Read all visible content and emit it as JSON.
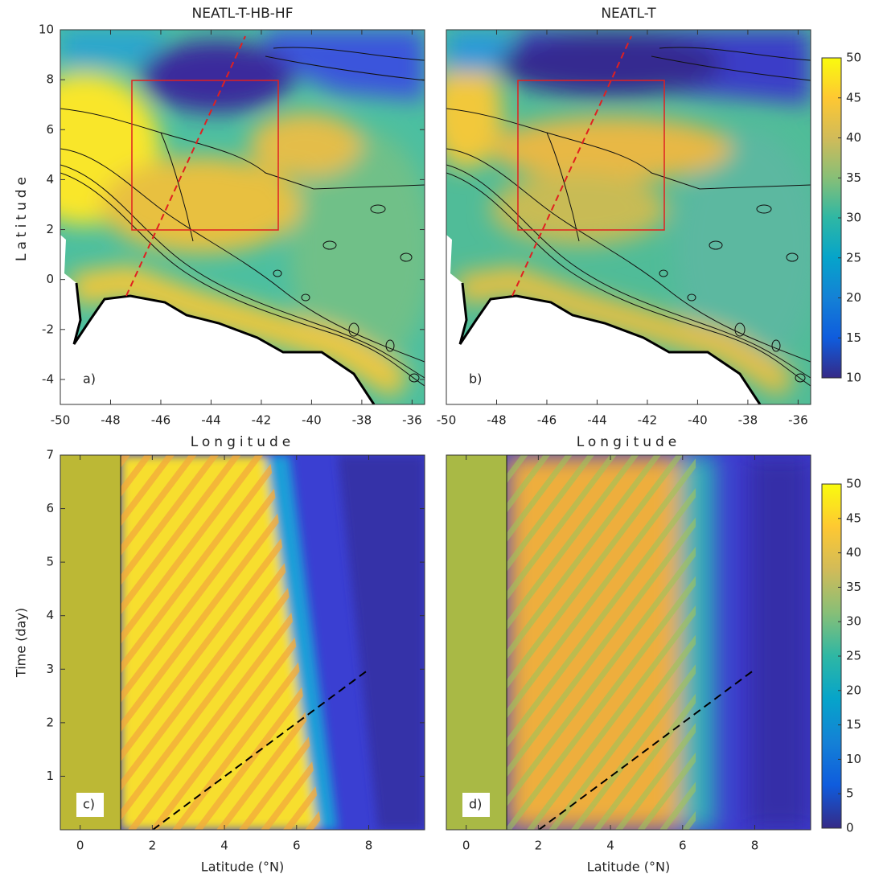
{
  "chart_data": [
    {
      "type": "heatmap",
      "title": "NEATL-T-HB-HF",
      "panel_label": "a)",
      "xlabel": "Longitude",
      "ylabel": "Latitude",
      "xlim": [
        -50,
        -35.5
      ],
      "xticks": [
        -50,
        -48,
        -46,
        -44,
        -42,
        -40,
        -38,
        -36
      ],
      "ylim": [
        -5,
        10
      ],
      "yticks": [
        -4,
        -2,
        0,
        2,
        4,
        6,
        8,
        10
      ]
    },
    {
      "type": "heatmap",
      "title": "NEATL-T",
      "panel_label": "b)",
      "xlabel": "Longitude",
      "xlim": [
        -50,
        -35.5
      ],
      "xticks": [
        -50,
        -48,
        -46,
        -44,
        -42,
        -40,
        -38,
        -36
      ],
      "ylim": [
        -5,
        10
      ],
      "colorbar": {
        "lim": [
          10,
          50
        ],
        "ticks": [
          10,
          15,
          20,
          25,
          30,
          35,
          40,
          45,
          50
        ]
      }
    },
    {
      "type": "heatmap",
      "panel_label": "c)",
      "xlabel": "Latitude (°N)",
      "ylabel": "Time (day)",
      "xlim": [
        -0.55,
        9.55
      ],
      "xticks": [
        0,
        2,
        4,
        6,
        8
      ],
      "ylim": [
        0,
        7
      ],
      "yticks": [
        1,
        2,
        3,
        4,
        5,
        6,
        7
      ]
    },
    {
      "type": "heatmap",
      "panel_label": "d)",
      "xlabel": "Latitude (°N)",
      "xlim": [
        -0.55,
        9.55
      ],
      "xticks": [
        0,
        2,
        4,
        6,
        8
      ],
      "ylim": [
        0,
        7
      ],
      "colorbar": {
        "lim": [
          0,
          50
        ],
        "ticks": [
          0,
          5,
          10,
          15,
          20,
          25,
          30,
          35,
          40,
          45,
          50
        ]
      }
    }
  ]
}
